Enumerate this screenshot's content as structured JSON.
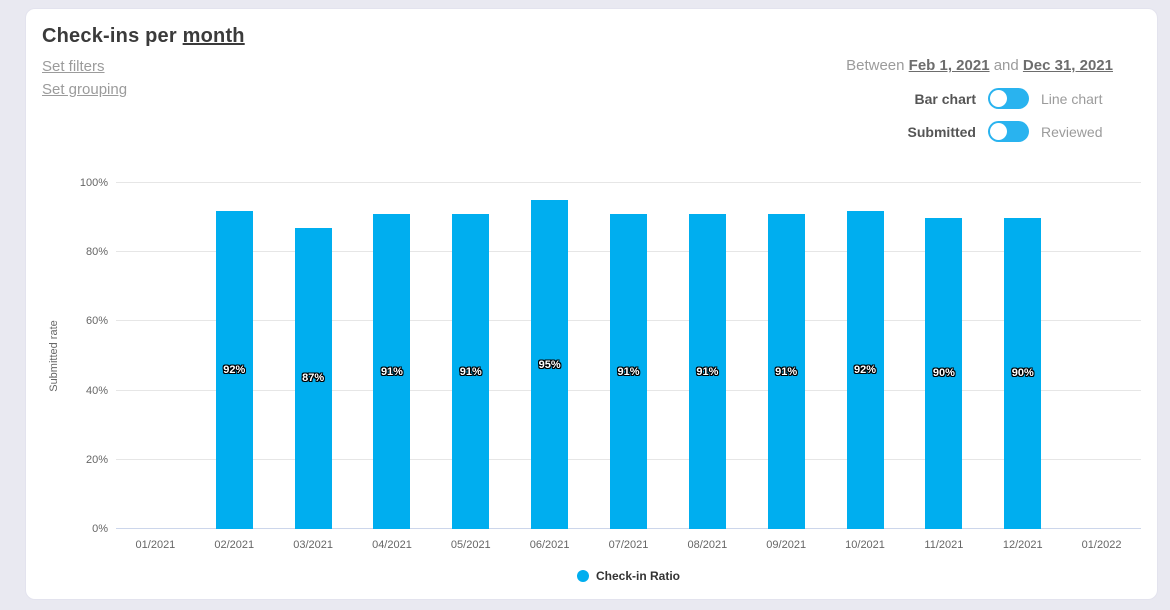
{
  "header": {
    "title_prefix": "Check-ins per ",
    "title_suffix": "month",
    "filters_link": "Set filters",
    "grouping_link": "Set grouping"
  },
  "controls": {
    "between_prefix": "Between",
    "start_date": "Feb 1, 2021",
    "between_mid": "and",
    "end_date": "Dec 31, 2021",
    "chart_type_toggle": {
      "left": "Bar chart",
      "right": "Line chart"
    },
    "series_toggle": {
      "left": "Submitted",
      "right": "Reviewed"
    }
  },
  "colors": {
    "bar": "#00aeef",
    "toggle": "#29b3ef",
    "grid": "#e6e6e6",
    "baseline": "#ccd6eb",
    "axis_text": "#666666"
  },
  "chart_data": {
    "type": "bar",
    "title": "Check-ins per month",
    "categories": [
      "01/2021",
      "02/2021",
      "03/2021",
      "04/2021",
      "05/2021",
      "06/2021",
      "07/2021",
      "08/2021",
      "09/2021",
      "10/2021",
      "11/2021",
      "12/2021",
      "01/2022"
    ],
    "values": [
      null,
      92,
      87,
      91,
      91,
      95,
      91,
      91,
      91,
      92,
      90,
      90,
      null
    ],
    "value_label_suffix": "%",
    "xlabel": "",
    "ylabel": "Submitted rate",
    "ylim": [
      0,
      100
    ],
    "yticks": [
      0,
      20,
      40,
      60,
      80,
      100
    ],
    "ytick_suffix": "%",
    "grid": true,
    "legend": "Check-in Ratio",
    "legend_position": "bottom-center",
    "bar_color": "#00aeef"
  }
}
